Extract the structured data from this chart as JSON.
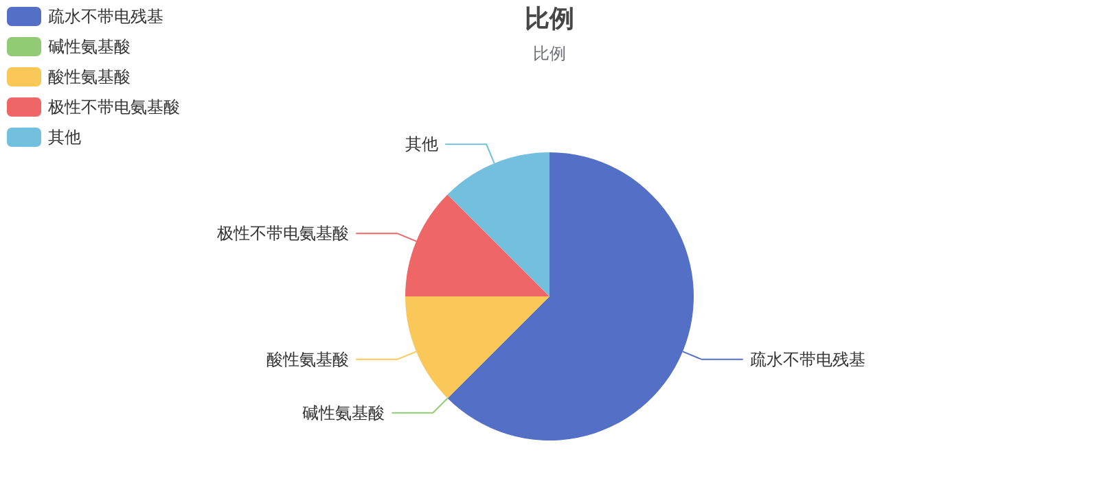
{
  "chart_data": {
    "type": "pie",
    "title": "比例",
    "subtitle": "比例",
    "categories": [
      "疏水不带电残基",
      "碱性氨基酸",
      "酸性氨基酸",
      "极性不带电氨基酸",
      "其他"
    ],
    "values": [
      62.5,
      0,
      12.5,
      12.5,
      12.5
    ],
    "colors": [
      "#5470c6",
      "#91cc75",
      "#fac858",
      "#ee6666",
      "#73c0de"
    ],
    "legend": "top left"
  }
}
